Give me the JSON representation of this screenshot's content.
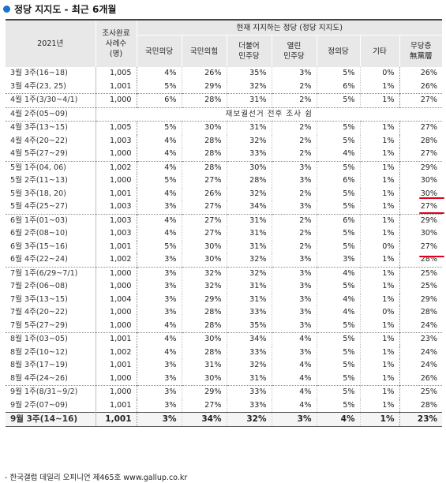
{
  "title": "정당 지지도 - 최근 6개월",
  "header": {
    "period": "2021년",
    "sample": "조사완료\n사례수\n(명)",
    "group": "현재 지지하는 정당 (정당 지지도)",
    "parties": [
      "국민의당",
      "국민의힘",
      "더불어\n민주당",
      "열린\n민주당",
      "정의당",
      "기타",
      "무당층\n無黨層"
    ]
  },
  "rows": [
    {
      "period": "3월 3주(16~18)",
      "n": "1,005",
      "v": [
        "4%",
        "26%",
        "35%",
        "3%",
        "5%",
        "0%",
        "26%"
      ],
      "gs": false
    },
    {
      "period": "3월 4주(23, 25)",
      "n": "1,001",
      "v": [
        "5%",
        "29%",
        "32%",
        "2%",
        "6%",
        "1%",
        "26%"
      ],
      "gs": false
    },
    {
      "period": "4월 1주(3/30~4/1)",
      "n": "1,000",
      "v": [
        "6%",
        "28%",
        "31%",
        "2%",
        "5%",
        "1%",
        "27%"
      ],
      "gs": true
    },
    {
      "period": "4월 2주(05~09)",
      "note": "재보궐선거 전후 조사 쉼",
      "gs": true
    },
    {
      "period": "4월 3주(13~15)",
      "n": "1,005",
      "v": [
        "5%",
        "30%",
        "31%",
        "2%",
        "5%",
        "1%",
        "27%"
      ],
      "gs": true
    },
    {
      "period": "4월 4주(20~22)",
      "n": "1,003",
      "v": [
        "4%",
        "28%",
        "32%",
        "2%",
        "5%",
        "1%",
        "28%"
      ],
      "gs": false
    },
    {
      "period": "4월 5주(27~29)",
      "n": "1,000",
      "v": [
        "4%",
        "28%",
        "33%",
        "2%",
        "4%",
        "1%",
        "27%"
      ],
      "gs": false
    },
    {
      "period": "5월 1주(04, 06)",
      "n": "1,002",
      "v": [
        "4%",
        "28%",
        "30%",
        "3%",
        "5%",
        "1%",
        "29%"
      ],
      "gs": true
    },
    {
      "period": "5월 2주(11~13)",
      "n": "1,000",
      "v": [
        "5%",
        "27%",
        "28%",
        "3%",
        "6%",
        "1%",
        "30%"
      ],
      "gs": false
    },
    {
      "period": "5월 3주(18, 20)",
      "n": "1,001",
      "v": [
        "4%",
        "26%",
        "32%",
        "2%",
        "5%",
        "1%",
        "30%"
      ],
      "gs": false
    },
    {
      "period": "5월 4주(25~27)",
      "n": "1,003",
      "v": [
        "3%",
        "27%",
        "34%",
        "3%",
        "5%",
        "1%",
        "27%"
      ],
      "gs": false
    },
    {
      "period": "6월 1주(01~03)",
      "n": "1,003",
      "v": [
        "4%",
        "27%",
        "31%",
        "2%",
        "6%",
        "1%",
        "29%"
      ],
      "gs": true
    },
    {
      "period": "6월 2주(08~10)",
      "n": "1,003",
      "v": [
        "4%",
        "27%",
        "31%",
        "2%",
        "5%",
        "1%",
        "30%"
      ],
      "gs": false
    },
    {
      "period": "6월 3주(15~16)",
      "n": "1,001",
      "v": [
        "5%",
        "30%",
        "31%",
        "2%",
        "5%",
        "0%",
        "27%"
      ],
      "gs": false
    },
    {
      "period": "6월 4주(22~24)",
      "n": "1,002",
      "v": [
        "3%",
        "30%",
        "32%",
        "3%",
        "3%",
        "1%",
        "28%"
      ],
      "gs": false
    },
    {
      "period": "7월 1주(6/29~7/1)",
      "n": "1,000",
      "v": [
        "3%",
        "32%",
        "32%",
        "3%",
        "4%",
        "1%",
        "25%"
      ],
      "gs": true
    },
    {
      "period": "7월 2주(06~08)",
      "n": "1,000",
      "v": [
        "3%",
        "32%",
        "31%",
        "3%",
        "5%",
        "1%",
        "25%"
      ],
      "gs": false
    },
    {
      "period": "7월 3주(13~15)",
      "n": "1,004",
      "v": [
        "3%",
        "29%",
        "31%",
        "3%",
        "4%",
        "1%",
        "29%"
      ],
      "gs": false
    },
    {
      "period": "7월 4주(20~22)",
      "n": "1,000",
      "v": [
        "3%",
        "28%",
        "33%",
        "3%",
        "4%",
        "0%",
        "28%"
      ],
      "gs": false
    },
    {
      "period": "7월 5주(27~29)",
      "n": "1,000",
      "v": [
        "4%",
        "28%",
        "35%",
        "3%",
        "5%",
        "1%",
        "24%"
      ],
      "gs": false
    },
    {
      "period": "8월 1주(03~05)",
      "n": "1,001",
      "v": [
        "4%",
        "30%",
        "34%",
        "4%",
        "5%",
        "1%",
        "23%"
      ],
      "gs": true
    },
    {
      "period": "8월 2주(10~12)",
      "n": "1,002",
      "v": [
        "4%",
        "28%",
        "33%",
        "3%",
        "5%",
        "1%",
        "24%"
      ],
      "gs": false
    },
    {
      "period": "8월 3주(17~19)",
      "n": "1,001",
      "v": [
        "3%",
        "31%",
        "32%",
        "4%",
        "5%",
        "1%",
        "24%"
      ],
      "gs": false
    },
    {
      "period": "8월 4주(24~26)",
      "n": "1,000",
      "v": [
        "3%",
        "30%",
        "31%",
        "4%",
        "5%",
        "1%",
        "26%"
      ],
      "gs": false
    },
    {
      "period": "9월 1주(8/31~9/2)",
      "n": "1,000",
      "v": [
        "3%",
        "29%",
        "33%",
        "4%",
        "5%",
        "1%",
        "25%"
      ],
      "gs": true
    },
    {
      "period": "9월 2주(07~09)",
      "n": "1,001",
      "v": [
        "3%",
        "27%",
        "33%",
        "4%",
        "5%",
        "1%",
        "28%"
      ],
      "gs": false
    }
  ],
  "latest": {
    "period": "9월 3주(14~16)",
    "n": "1,001",
    "v": [
      "3%",
      "34%",
      "32%",
      "3%",
      "4%",
      "1%",
      "23%"
    ]
  },
  "source": "- 한국갤럽 데일리 오피니언 제465호 www.gallup.co.kr",
  "colors": {
    "title_dot": "#1a73c9",
    "header_bg": "#e8e8e8",
    "mark": "#e0001b"
  }
}
